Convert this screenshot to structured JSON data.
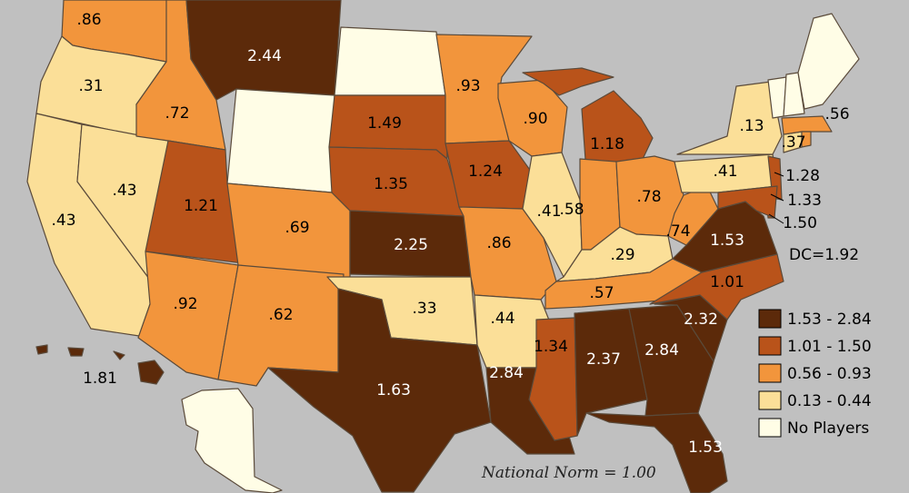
{
  "map": {
    "dc_label": "DC=1.92",
    "national_norm": "National Norm = 1.00",
    "colors": {
      "dark": "#5c2a0a",
      "rust": "#b9531a",
      "orange": "#f2953c",
      "light": "#fbdf98",
      "none": "#fffde6",
      "background": "#c0c0c0",
      "ocean_border": "#5a4a3a"
    },
    "legend": [
      {
        "label": "1.53 - 2.84",
        "tier": "dark"
      },
      {
        "label": "1.01 - 1.50",
        "tier": "rust"
      },
      {
        "label": "0.56 - 0.93",
        "tier": "orange"
      },
      {
        "label": "0.13 - 0.44",
        "tier": "light"
      },
      {
        "label": "No Players",
        "tier": "none"
      }
    ],
    "states": [
      {
        "id": "WA",
        "value": ".86",
        "tier": "orange"
      },
      {
        "id": "OR",
        "value": ".31",
        "tier": "light"
      },
      {
        "id": "CA",
        "value": ".43",
        "tier": "light"
      },
      {
        "id": "NV",
        "value": ".43",
        "tier": "light"
      },
      {
        "id": "ID",
        "value": ".72",
        "tier": "orange"
      },
      {
        "id": "MT",
        "value": "2.44",
        "tier": "dark"
      },
      {
        "id": "WY",
        "value": "",
        "tier": "none"
      },
      {
        "id": "UT",
        "value": "1.21",
        "tier": "rust"
      },
      {
        "id": "AZ",
        "value": ".92",
        "tier": "orange"
      },
      {
        "id": "CO",
        "value": ".69",
        "tier": "orange"
      },
      {
        "id": "NM",
        "value": ".62",
        "tier": "orange"
      },
      {
        "id": "ND",
        "value": "",
        "tier": "none"
      },
      {
        "id": "SD",
        "value": "1.49",
        "tier": "rust"
      },
      {
        "id": "NE",
        "value": "1.35",
        "tier": "rust"
      },
      {
        "id": "KS",
        "value": "2.25",
        "tier": "dark"
      },
      {
        "id": "OK",
        "value": ".33",
        "tier": "light"
      },
      {
        "id": "TX",
        "value": "1.63",
        "tier": "dark"
      },
      {
        "id": "MN",
        "value": ".93",
        "tier": "orange"
      },
      {
        "id": "IA",
        "value": "1.24",
        "tier": "rust"
      },
      {
        "id": "MO",
        "value": ".86",
        "tier": "orange"
      },
      {
        "id": "AR",
        "value": ".44",
        "tier": "light"
      },
      {
        "id": "LA",
        "value": "2.84",
        "tier": "dark"
      },
      {
        "id": "WI",
        "value": ".90",
        "tier": "orange"
      },
      {
        "id": "IL",
        "value": ".41",
        "tier": "light"
      },
      {
        "id": "MI",
        "value": "1.18",
        "tier": "rust"
      },
      {
        "id": "IN",
        "value": ".58",
        "tier": "orange"
      },
      {
        "id": "OH",
        "value": ".78",
        "tier": "orange"
      },
      {
        "id": "KY",
        "value": ".29",
        "tier": "light"
      },
      {
        "id": "TN",
        "value": ".57",
        "tier": "orange"
      },
      {
        "id": "MS",
        "value": "1.34",
        "tier": "rust"
      },
      {
        "id": "AL",
        "value": "2.37",
        "tier": "dark"
      },
      {
        "id": "GA",
        "value": "2.84",
        "tier": "dark"
      },
      {
        "id": "FL",
        "value": "1.53",
        "tier": "dark"
      },
      {
        "id": "SC",
        "value": "2.32",
        "tier": "dark"
      },
      {
        "id": "NC",
        "value": "1.01",
        "tier": "rust"
      },
      {
        "id": "VA",
        "value": "1.53",
        "tier": "dark"
      },
      {
        "id": "WV",
        "value": ".74",
        "tier": "orange"
      },
      {
        "id": "PA",
        "value": ".41",
        "tier": "light"
      },
      {
        "id": "NY",
        "value": ".13",
        "tier": "light"
      },
      {
        "id": "NJ",
        "value": "1.28",
        "tier": "rust"
      },
      {
        "id": "DE",
        "value": "1.33",
        "tier": "rust"
      },
      {
        "id": "MD",
        "value": "1.50",
        "tier": "rust"
      },
      {
        "id": "CT",
        "value": ".37",
        "tier": "light"
      },
      {
        "id": "MA",
        "value": ".56",
        "tier": "orange"
      },
      {
        "id": "RI",
        "value": "",
        "tier": "orange"
      },
      {
        "id": "VT",
        "value": "",
        "tier": "none"
      },
      {
        "id": "NH",
        "value": "",
        "tier": "none"
      },
      {
        "id": "ME",
        "value": "",
        "tier": "none"
      },
      {
        "id": "HI",
        "value": "1.81",
        "tier": "dark"
      },
      {
        "id": "AK",
        "value": "",
        "tier": "none"
      }
    ]
  }
}
